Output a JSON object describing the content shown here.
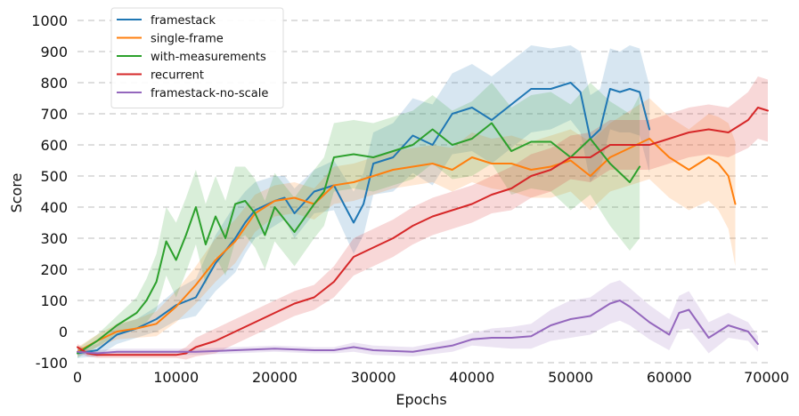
{
  "chart_data": {
    "type": "line",
    "title": "",
    "xlabel": "Epochs",
    "ylabel": "Score",
    "xlim": [
      0,
      70000
    ],
    "ylim": [
      -100,
      1000
    ],
    "xticks": [
      0,
      10000,
      20000,
      30000,
      40000,
      50000,
      60000,
      70000
    ],
    "yticks": [
      -100,
      0,
      100,
      200,
      300,
      400,
      500,
      600,
      700,
      800,
      900,
      1000
    ],
    "xtick_labels": [
      "0",
      "10000",
      "20000",
      "30000",
      "40000",
      "50000",
      "60000",
      "70000"
    ],
    "ytick_labels": [
      "-100",
      "0",
      "100",
      "200",
      "300",
      "400",
      "500",
      "600",
      "700",
      "800",
      "900",
      "1000"
    ],
    "grid": "horizontal-dashed",
    "legend_position": "top-left",
    "series": [
      {
        "name": "framestack",
        "color": "#1f77b4",
        "x": [
          0,
          2000,
          4000,
          6000,
          8000,
          10000,
          12000,
          14000,
          15000,
          16000,
          17000,
          18000,
          20000,
          21000,
          22000,
          24000,
          26000,
          27000,
          28000,
          29000,
          30000,
          32000,
          34000,
          36000,
          38000,
          40000,
          42000,
          44000,
          46000,
          48000,
          50000,
          51000,
          52000,
          53000,
          54000,
          55000,
          56000,
          57000,
          58000
        ],
        "y": [
          -70,
          -60,
          -10,
          10,
          40,
          85,
          110,
          220,
          260,
          300,
          350,
          390,
          420,
          430,
          380,
          450,
          470,
          410,
          350,
          410,
          540,
          560,
          630,
          600,
          700,
          720,
          680,
          730,
          780,
          780,
          800,
          770,
          620,
          650,
          780,
          770,
          780,
          770,
          650
        ],
        "spread": [
          15,
          20,
          30,
          30,
          40,
          50,
          60,
          90,
          100,
          110,
          100,
          90,
          80,
          70,
          80,
          70,
          80,
          90,
          100,
          100,
          100,
          110,
          120,
          130,
          130,
          140,
          140,
          140,
          140,
          130,
          120,
          130,
          140,
          130,
          130,
          130,
          140,
          140,
          140
        ]
      },
      {
        "name": "single-frame",
        "color": "#ff7f0e",
        "x": [
          0,
          2000,
          4000,
          6000,
          8000,
          10000,
          12000,
          14000,
          16000,
          18000,
          20000,
          22000,
          24000,
          26000,
          28000,
          30000,
          32000,
          34000,
          36000,
          38000,
          40000,
          42000,
          44000,
          46000,
          48000,
          50000,
          52000,
          54000,
          56000,
          58000,
          60000,
          62000,
          64000,
          65000,
          66000,
          66700
        ],
        "y": [
          -65,
          -30,
          0,
          10,
          25,
          80,
          150,
          230,
          290,
          380,
          420,
          430,
          410,
          470,
          480,
          500,
          520,
          530,
          540,
          520,
          560,
          540,
          540,
          520,
          530,
          550,
          500,
          560,
          590,
          620,
          560,
          520,
          560,
          540,
          500,
          410
        ],
        "spread": [
          15,
          20,
          25,
          30,
          40,
          50,
          60,
          70,
          70,
          60,
          50,
          50,
          50,
          60,
          60,
          60,
          60,
          60,
          60,
          70,
          80,
          80,
          90,
          90,
          100,
          100,
          110,
          110,
          120,
          130,
          130,
          130,
          140,
          150,
          170,
          200
        ]
      },
      {
        "name": "with-measurements",
        "color": "#2ca02c",
        "x": [
          0,
          2000,
          4000,
          6000,
          7000,
          8000,
          9000,
          10000,
          11000,
          12000,
          13000,
          14000,
          15000,
          16000,
          17000,
          18000,
          19000,
          20000,
          21000,
          22000,
          24000,
          25000,
          26000,
          28000,
          30000,
          32000,
          34000,
          36000,
          38000,
          40000,
          42000,
          44000,
          46000,
          48000,
          50000,
          52000,
          54000,
          56000,
          57000
        ],
        "y": [
          -70,
          -30,
          20,
          60,
          100,
          160,
          290,
          230,
          310,
          400,
          280,
          370,
          300,
          410,
          420,
          380,
          310,
          400,
          360,
          320,
          410,
          450,
          560,
          570,
          560,
          580,
          600,
          650,
          600,
          620,
          670,
          580,
          610,
          610,
          560,
          620,
          540,
          480,
          530
        ],
        "spread": [
          15,
          20,
          30,
          50,
          70,
          90,
          110,
          120,
          120,
          120,
          130,
          130,
          120,
          120,
          110,
          110,
          110,
          110,
          110,
          110,
          110,
          110,
          110,
          110,
          110,
          110,
          110,
          110,
          110,
          120,
          130,
          140,
          150,
          160,
          170,
          180,
          200,
          220,
          230
        ]
      },
      {
        "name": "recurrent",
        "color": "#d62728",
        "x": [
          0,
          1000,
          2000,
          6000,
          10000,
          11000,
          12000,
          14000,
          16000,
          18000,
          20000,
          22000,
          24000,
          26000,
          28000,
          30000,
          32000,
          34000,
          36000,
          38000,
          40000,
          42000,
          44000,
          46000,
          48000,
          50000,
          52000,
          54000,
          56000,
          58000,
          60000,
          62000,
          64000,
          66000,
          68000,
          69000,
          70000
        ],
        "y": [
          -50,
          -70,
          -75,
          -75,
          -75,
          -70,
          -50,
          -30,
          0,
          30,
          60,
          90,
          110,
          160,
          240,
          270,
          300,
          340,
          370,
          390,
          410,
          440,
          460,
          500,
          520,
          560,
          560,
          600,
          600,
          600,
          620,
          640,
          650,
          640,
          680,
          720,
          710
        ],
        "spread": [
          10,
          10,
          10,
          10,
          10,
          20,
          30,
          40,
          40,
          40,
          40,
          40,
          40,
          50,
          60,
          60,
          60,
          60,
          60,
          60,
          60,
          60,
          70,
          70,
          70,
          70,
          80,
          80,
          80,
          80,
          80,
          80,
          80,
          80,
          90,
          100,
          100
        ]
      },
      {
        "name": "framestack-no-scale",
        "color": "#9467bd",
        "x": [
          0,
          2000,
          4000,
          8000,
          12000,
          16000,
          20000,
          24000,
          26000,
          28000,
          30000,
          34000,
          38000,
          40000,
          42000,
          44000,
          46000,
          48000,
          50000,
          52000,
          54000,
          55000,
          56000,
          58000,
          60000,
          61000,
          62000,
          64000,
          66000,
          68000,
          69000
        ],
        "y": [
          -65,
          -70,
          -65,
          -65,
          -65,
          -60,
          -55,
          -60,
          -60,
          -50,
          -60,
          -65,
          -45,
          -25,
          -20,
          -20,
          -15,
          20,
          40,
          50,
          90,
          100,
          80,
          30,
          -10,
          60,
          70,
          -20,
          20,
          0,
          -40
        ],
        "spread": [
          10,
          10,
          10,
          10,
          10,
          10,
          10,
          10,
          10,
          15,
          15,
          15,
          20,
          20,
          30,
          35,
          40,
          50,
          60,
          60,
          65,
          65,
          60,
          55,
          50,
          55,
          60,
          50,
          40,
          30,
          25
        ]
      }
    ]
  }
}
